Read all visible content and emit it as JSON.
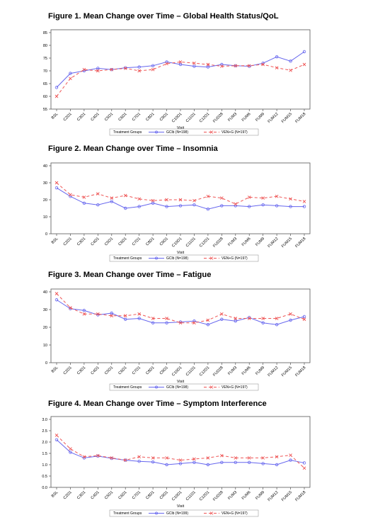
{
  "figures": [
    {
      "title": "Figure 1. Mean Change over Time – Global Health Status/QoL",
      "chart_data": {
        "type": "line",
        "categories": [
          "BSL",
          "C2D1",
          "C3D1",
          "C4D1",
          "C5D1",
          "C6D1",
          "C7D1",
          "C8D1",
          "C9D1",
          "C10D1",
          "C11D1",
          "C12D1",
          "FUD28",
          "FUM3",
          "FUM6",
          "FUM9",
          "FUM12",
          "FUM15",
          "FUM18"
        ],
        "ylim": [
          55,
          85
        ],
        "yticks": [
          55,
          60,
          65,
          70,
          75,
          80,
          85
        ],
        "xlabel": "Visit",
        "legend_title": "Treatment Groups",
        "series": [
          {
            "name": "GClb (N=198)",
            "color": "#6666ee",
            "dash": "",
            "marker": "circle",
            "values": [
              63.5,
              69.0,
              70.0,
              71.0,
              70.5,
              71.2,
              71.5,
              72.0,
              73.5,
              72.5,
              71.8,
              71.5,
              72.5,
              72.0,
              71.8,
              73.0,
              75.5,
              73.8,
              77.5
            ]
          },
          {
            "name": "VEN+G (N=197)",
            "color": "#ee5555",
            "dash": "4,3",
            "marker": "x",
            "values": [
              60.0,
              67.0,
              70.5,
              70.0,
              70.5,
              71.0,
              70.0,
              70.5,
              72.8,
              73.5,
              73.0,
              72.5,
              71.8,
              72.0,
              72.0,
              72.5,
              71.2,
              70.2,
              72.5
            ]
          }
        ]
      }
    },
    {
      "title": "Figure 2. Mean Change over Time – Insomnia",
      "chart_data": {
        "type": "line",
        "categories": [
          "BSL",
          "C2D1",
          "C3D1",
          "C4D1",
          "C5D1",
          "C6D1",
          "C7D1",
          "C8D1",
          "C9D1",
          "C10D1",
          "C11D1",
          "C12D1",
          "FUD28",
          "FUM3",
          "FUM6",
          "FUM9",
          "FUM12",
          "FUM15",
          "FUM18"
        ],
        "ylim": [
          0,
          40
        ],
        "yticks": [
          0,
          10,
          20,
          30,
          40
        ],
        "xlabel": "Visit",
        "legend_title": "Treatment Groups",
        "series": [
          {
            "name": "GClb (N=198)",
            "color": "#6666ee",
            "dash": "",
            "marker": "circle",
            "values": [
              27.0,
              22.0,
              18.0,
              17.0,
              19.0,
              15.0,
              16.0,
              18.0,
              16.0,
              16.5,
              17.0,
              14.5,
              16.5,
              16.5,
              16.0,
              17.0,
              16.5,
              16.0,
              16.0
            ]
          },
          {
            "name": "VEN+G (N=197)",
            "color": "#ee5555",
            "dash": "4,3",
            "marker": "x",
            "values": [
              30.0,
              23.0,
              21.5,
              23.5,
              21.0,
              22.5,
              20.5,
              19.5,
              20.0,
              20.0,
              19.5,
              22.0,
              21.0,
              17.5,
              21.5,
              21.0,
              22.0,
              20.5,
              19.0
            ]
          }
        ]
      }
    },
    {
      "title": "Figure 3. Mean Change over Time – Fatigue",
      "chart_data": {
        "type": "line",
        "categories": [
          "BSL",
          "C2D1",
          "C3D1",
          "C4D1",
          "C5D1",
          "C6D1",
          "C7D1",
          "C8D1",
          "C9D1",
          "C10D1",
          "C11D1",
          "C12D1",
          "FUD28",
          "FUM3",
          "FUM6",
          "FUM9",
          "FUM12",
          "FUM15",
          "FUM18"
        ],
        "ylim": [
          0,
          40
        ],
        "yticks": [
          0,
          10,
          20,
          30,
          40
        ],
        "xlabel": "Visit",
        "legend_title": "Treatment Groups",
        "series": [
          {
            "name": "GClb (N=198)",
            "color": "#6666ee",
            "dash": "",
            "marker": "circle",
            "values": [
              35.5,
              30.5,
              29.5,
              27.0,
              28.0,
              24.5,
              25.0,
              22.5,
              22.5,
              23.0,
              23.5,
              21.5,
              24.5,
              23.5,
              25.5,
              22.5,
              21.5,
              24.0,
              26.0
            ]
          },
          {
            "name": "VEN+G (N=197)",
            "color": "#ee5555",
            "dash": "4,3",
            "marker": "x",
            "values": [
              39.0,
              31.0,
              27.5,
              27.5,
              26.5,
              26.5,
              27.5,
              25.0,
              25.0,
              22.5,
              22.5,
              24.0,
              27.5,
              25.0,
              25.0,
              25.0,
              25.0,
              27.5,
              24.5
            ]
          }
        ]
      }
    },
    {
      "title": "Figure 4. Mean Change over Time – Symptom Interference",
      "chart_data": {
        "type": "line",
        "categories": [
          "BSL",
          "C2D1",
          "C3D1",
          "C4D1",
          "C5D1",
          "C6D1",
          "C7D1",
          "C8D1",
          "C9D1",
          "C10D1",
          "C11D1",
          "C12D1",
          "FUD28",
          "FUM3",
          "FUM6",
          "FUM9",
          "FUM12",
          "FUM15",
          "FUM18"
        ],
        "ylim": [
          0.0,
          3.0
        ],
        "yticks": [
          0.0,
          0.5,
          1.0,
          1.5,
          2.0,
          2.5,
          3.0
        ],
        "xlabel": "Visit",
        "legend_title": "Treatment Groups",
        "series": [
          {
            "name": "GClb (N=199)",
            "color": "#6666ee",
            "dash": "",
            "marker": "circle",
            "values": [
              2.1,
              1.55,
              1.3,
              1.38,
              1.28,
              1.2,
              1.15,
              1.12,
              1.0,
              1.05,
              1.1,
              1.0,
              1.1,
              1.1,
              1.1,
              1.05,
              1.0,
              1.2,
              1.08
            ]
          },
          {
            "name": "VEN+G (N=197)",
            "color": "#ee5555",
            "dash": "4,3",
            "marker": "x",
            "values": [
              2.3,
              1.7,
              1.35,
              1.4,
              1.3,
              1.2,
              1.35,
              1.3,
              1.3,
              1.2,
              1.25,
              1.3,
              1.4,
              1.3,
              1.3,
              1.3,
              1.35,
              1.42,
              0.85
            ]
          }
        ]
      }
    }
  ]
}
